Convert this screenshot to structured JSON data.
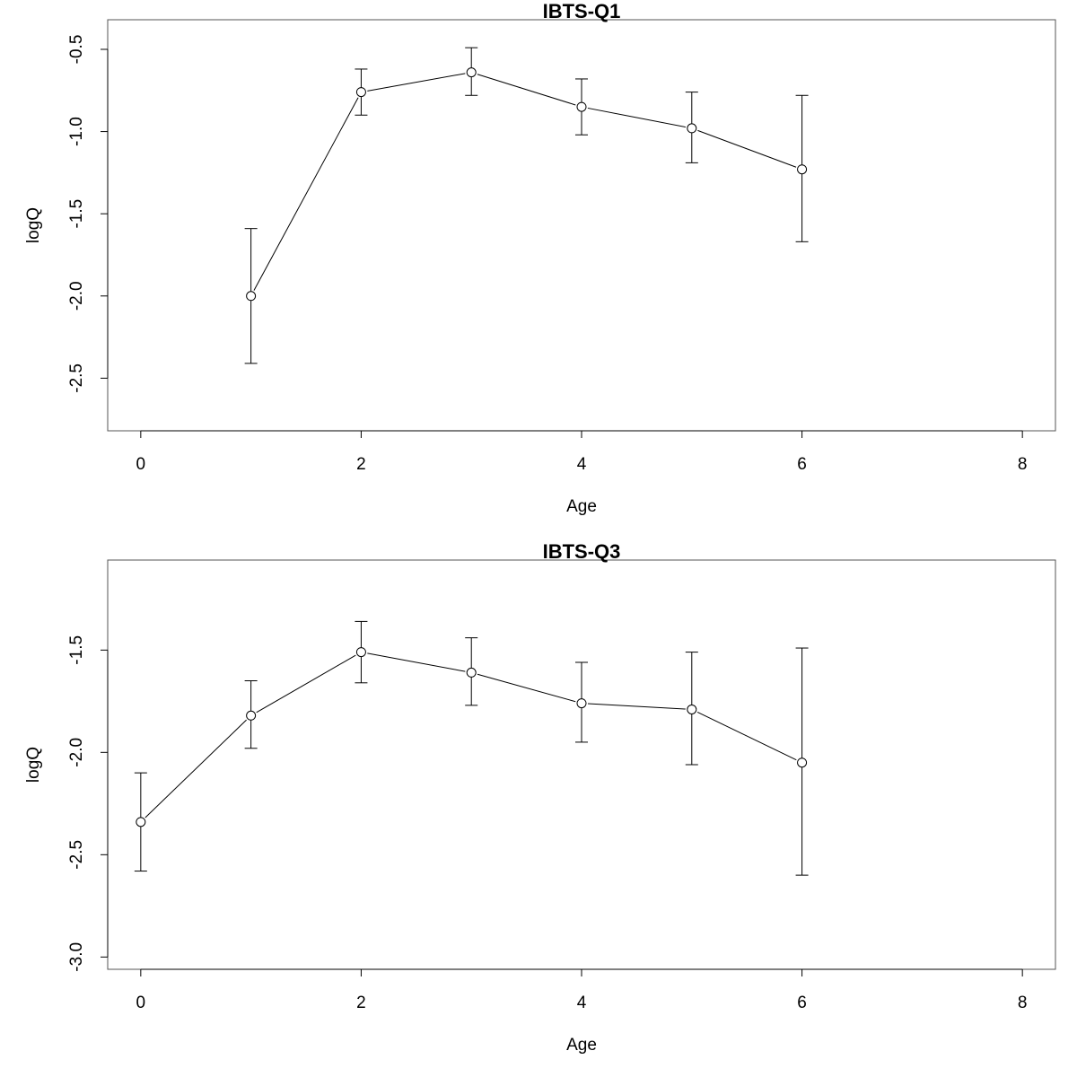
{
  "chart_data": [
    {
      "type": "line",
      "title": "IBTS-Q1",
      "xlabel": "Age",
      "ylabel": "logQ",
      "xlim": [
        -0.3,
        8.3
      ],
      "ylim": [
        -2.82,
        -0.32
      ],
      "xticks": [
        0,
        2,
        4,
        6,
        8
      ],
      "yticks": [
        -0.5,
        -1.0,
        -1.5,
        -2.0,
        -2.5
      ],
      "ytick_labels": [
        "-0.5",
        "-1.0",
        "-1.5",
        "-2.0",
        "-2.5"
      ],
      "grid": false,
      "points": [
        {
          "x": 1,
          "y": -2.0,
          "lower": -2.41,
          "upper": -1.59
        },
        {
          "x": 2,
          "y": -0.76,
          "lower": -0.9,
          "upper": -0.62
        },
        {
          "x": 3,
          "y": -0.64,
          "lower": -0.78,
          "upper": -0.49
        },
        {
          "x": 4,
          "y": -0.85,
          "lower": -1.02,
          "upper": -0.68
        },
        {
          "x": 5,
          "y": -0.98,
          "lower": -1.19,
          "upper": -0.76
        },
        {
          "x": 6,
          "y": -1.23,
          "lower": -1.67,
          "upper": -0.78
        }
      ]
    },
    {
      "type": "line",
      "title": "IBTS-Q3",
      "xlabel": "Age",
      "ylabel": "logQ",
      "xlim": [
        -0.3,
        8.3
      ],
      "ylim": [
        -3.06,
        -1.06
      ],
      "xticks": [
        0,
        2,
        4,
        6,
        8
      ],
      "yticks": [
        -1.5,
        -2.0,
        -2.5,
        -3.0
      ],
      "ytick_labels": [
        "-1.5",
        "-2.0",
        "-2.5",
        "-3.0"
      ],
      "grid": false,
      "points": [
        {
          "x": 0,
          "y": -2.34,
          "lower": -2.58,
          "upper": -2.1
        },
        {
          "x": 1,
          "y": -1.82,
          "lower": -1.98,
          "upper": -1.65
        },
        {
          "x": 2,
          "y": -1.51,
          "lower": -1.66,
          "upper": -1.36
        },
        {
          "x": 3,
          "y": -1.61,
          "lower": -1.77,
          "upper": -1.44
        },
        {
          "x": 4,
          "y": -1.76,
          "lower": -1.95,
          "upper": -1.56
        },
        {
          "x": 5,
          "y": -1.79,
          "lower": -2.06,
          "upper": -1.51
        },
        {
          "x": 6,
          "y": -2.05,
          "lower": -2.6,
          "upper": -1.49
        }
      ]
    }
  ]
}
